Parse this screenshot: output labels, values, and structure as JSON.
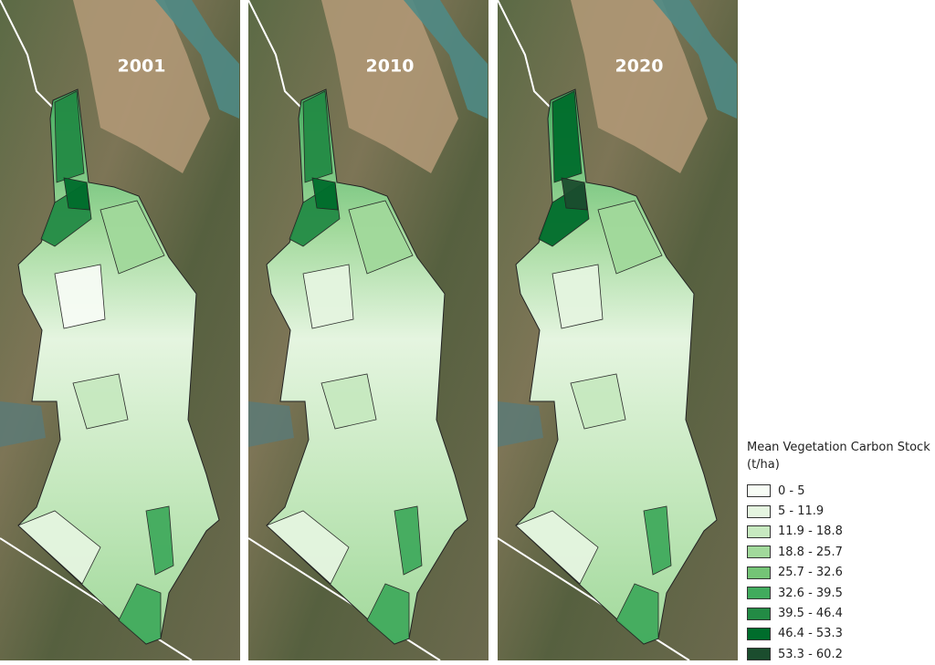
{
  "panels": [
    {
      "title": "2001"
    },
    {
      "title": "2010"
    },
    {
      "title": "2020"
    }
  ],
  "legend": {
    "title": "Mean Vegetation Carbon Stock (t/ha)",
    "items": [
      {
        "label": "0 - 5",
        "color": "#f7fcf5"
      },
      {
        "label": "5 - 11.9",
        "color": "#e5f5e0"
      },
      {
        "label": "11.9 - 18.8",
        "color": "#c7e9c0"
      },
      {
        "label": "18.8 - 25.7",
        "color": "#a1d99b"
      },
      {
        "label": "25.7 - 32.6",
        "color": "#74c476"
      },
      {
        "label": "32.6 - 39.5",
        "color": "#41ab5d"
      },
      {
        "label": "39.5 - 46.4",
        "color": "#238b45"
      },
      {
        "label": "46.4 - 53.3",
        "color": "#006d2c"
      },
      {
        "label": "53.3 - 60.2",
        "color": "#1b4d2e"
      }
    ]
  }
}
